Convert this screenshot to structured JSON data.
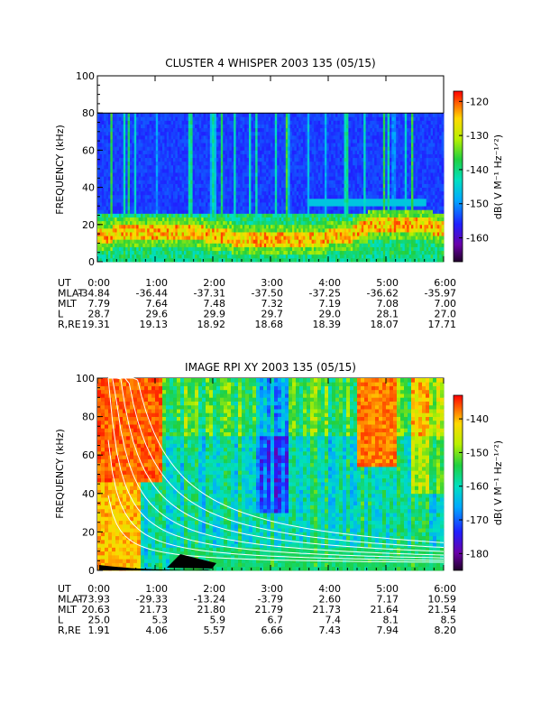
{
  "chart_data": [
    {
      "type": "heatmap",
      "title": "CLUSTER 4 WHISPER 2003 135 (05/15)",
      "ylabel": "FREQUENCY (kHz)",
      "ylim": [
        0,
        100
      ],
      "y_ticks": [
        "0",
        "20",
        "40",
        "60",
        "80",
        "100"
      ],
      "data_ylim": [
        0,
        80
      ],
      "colorbar": {
        "label": "dB( V M⁻¹ Hz⁻¹ᐟ²)",
        "range": [
          -167,
          -117
        ],
        "ticks": [
          "-120",
          "-130",
          "-140",
          "-150",
          "-160"
        ]
      },
      "x_ticks": [
        "0:00",
        "1:00",
        "2:00",
        "3:00",
        "4:00",
        "5:00",
        "6:00"
      ],
      "ephemeris": [
        {
          "label": "UT",
          "values": [
            "0:00",
            "1:00",
            "2:00",
            "3:00",
            "4:00",
            "5:00",
            "6:00"
          ]
        },
        {
          "label": "MLAT",
          "values": [
            "-34.84",
            "-36.44",
            "-37.31",
            "-37.50",
            "-37.25",
            "-36.62",
            "-35.97"
          ]
        },
        {
          "label": "MLT",
          "values": [
            "7.79",
            "7.64",
            "7.48",
            "7.32",
            "7.19",
            "7.08",
            "7.00"
          ]
        },
        {
          "label": "L",
          "values": [
            "28.7",
            "29.6",
            "29.9",
            "29.7",
            "29.0",
            "28.1",
            "27.0"
          ]
        },
        {
          "label": "R,RE",
          "values": [
            "19.31",
            "19.13",
            "18.92",
            "18.68",
            "18.39",
            "18.07",
            "17.71"
          ]
        }
      ]
    },
    {
      "type": "heatmap",
      "title": "IMAGE RPI XY 2003 135 (05/15)",
      "ylabel": "FREQUENCY (kHz)",
      "ylim": [
        0,
        100
      ],
      "y_ticks": [
        "0",
        "20",
        "40",
        "60",
        "80",
        "100"
      ],
      "data_ylim": [
        0,
        100
      ],
      "colorbar": {
        "label": "dB( V M⁻¹ Hz⁻¹ᐟ²)",
        "range": [
          -185,
          -133
        ],
        "ticks": [
          "-140",
          "-150",
          "-160",
          "-170",
          "-180"
        ]
      },
      "x_ticks": [
        "0:00",
        "1:00",
        "2:00",
        "3:00",
        "4:00",
        "5:00",
        "6:00"
      ],
      "ephemeris": [
        {
          "label": "UT",
          "values": [
            "0:00",
            "1:00",
            "2:00",
            "3:00",
            "4:00",
            "5:00",
            "6:00"
          ]
        },
        {
          "label": "MLAT",
          "values": [
            "-73.93",
            "-29.33",
            "-13.24",
            "-3.79",
            "2.60",
            "7.17",
            "10.59"
          ]
        },
        {
          "label": "MLT",
          "values": [
            "20.63",
            "21.73",
            "21.80",
            "21.79",
            "21.73",
            "21.64",
            "21.54"
          ]
        },
        {
          "label": "L",
          "values": [
            "25.0",
            "5.3",
            "5.9",
            "6.7",
            "7.4",
            "8.1",
            "8.5"
          ]
        },
        {
          "label": "R,RE",
          "values": [
            "1.91",
            "4.06",
            "5.57",
            "6.66",
            "7.43",
            "7.94",
            "8.20"
          ]
        }
      ]
    }
  ]
}
